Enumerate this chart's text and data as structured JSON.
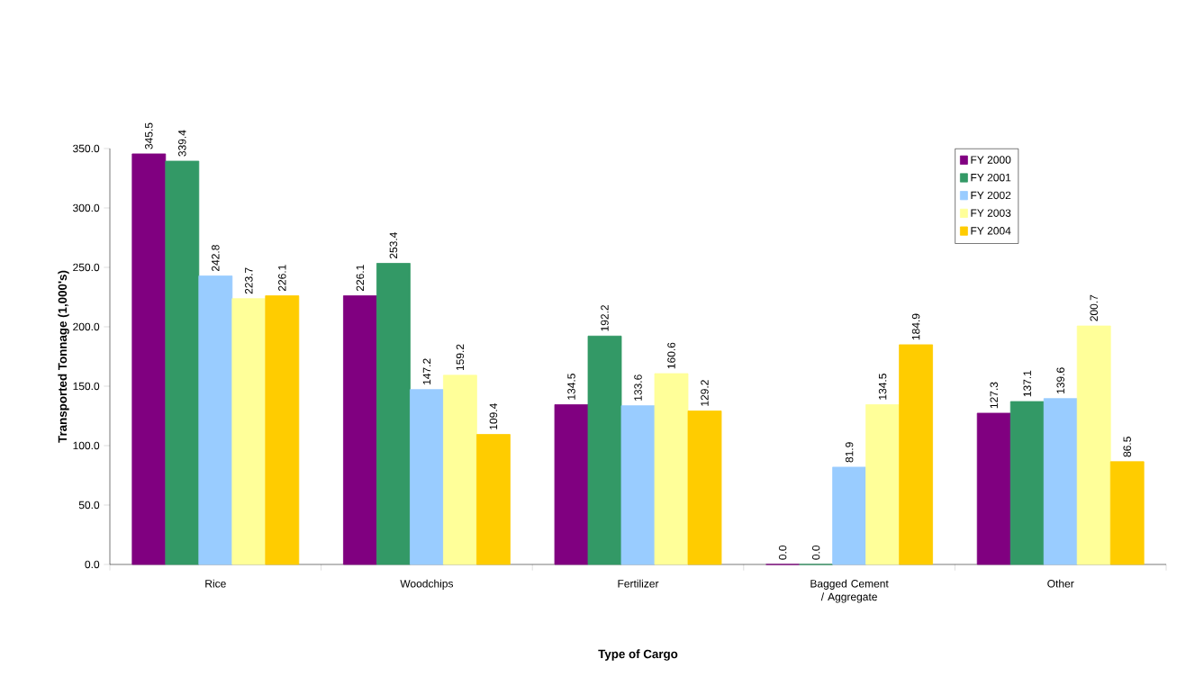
{
  "chart_data": {
    "type": "bar",
    "xlabel": "Type of Cargo",
    "ylabel": "Transported Tonnage (1,000's)",
    "categories": [
      "Rice",
      "Woodchips",
      "Fertilizer",
      "Bagged Cement / Aggregate",
      "Other"
    ],
    "series": [
      {
        "name": "FY 2000",
        "color": "#800080",
        "values": [
          345.5,
          226.1,
          134.5,
          0.0,
          127.3
        ],
        "value_labels": [
          "345.5",
          "226.1",
          "134.5",
          "0.0",
          "127.3"
        ]
      },
      {
        "name": "FY 2001",
        "color": "#339966",
        "values": [
          339.4,
          253.4,
          192.2,
          0.0,
          137.1
        ],
        "value_labels": [
          "339.4",
          "253.4",
          "192.2",
          "0.0",
          "137.1"
        ]
      },
      {
        "name": "FY 2002",
        "color": "#99ccff",
        "values": [
          242.8,
          147.2,
          133.6,
          81.9,
          139.6
        ],
        "value_labels": [
          "242.8",
          "147.2",
          "133.6",
          "81.9",
          "139.6"
        ]
      },
      {
        "name": "FY 2003",
        "color": "#ffff99",
        "values": [
          223.7,
          159.2,
          160.6,
          134.5,
          200.7
        ],
        "value_labels": [
          "223.7",
          "159.2",
          "160.6",
          "134.5",
          "200.7"
        ]
      },
      {
        "name": "FY 2004",
        "color": "#ffcc00",
        "values": [
          226.1,
          109.4,
          129.2,
          184.9,
          86.5
        ],
        "value_labels": [
          "226.1",
          "109.4",
          "129.2",
          "184.9",
          "86.5"
        ]
      }
    ],
    "ylim": [
      0,
      350
    ],
    "yticks": [
      {
        "value": 0,
        "label": "0.0"
      },
      {
        "value": 50,
        "label": "50.0"
      },
      {
        "value": 100,
        "label": "100.0"
      },
      {
        "value": 150,
        "label": "150.0"
      },
      {
        "value": 200,
        "label": "200.0"
      },
      {
        "value": 250,
        "label": "250.0"
      },
      {
        "value": 300,
        "label": "300.0"
      },
      {
        "value": 350,
        "label": "350.0"
      }
    ],
    "legend": "top right",
    "grid": false
  }
}
